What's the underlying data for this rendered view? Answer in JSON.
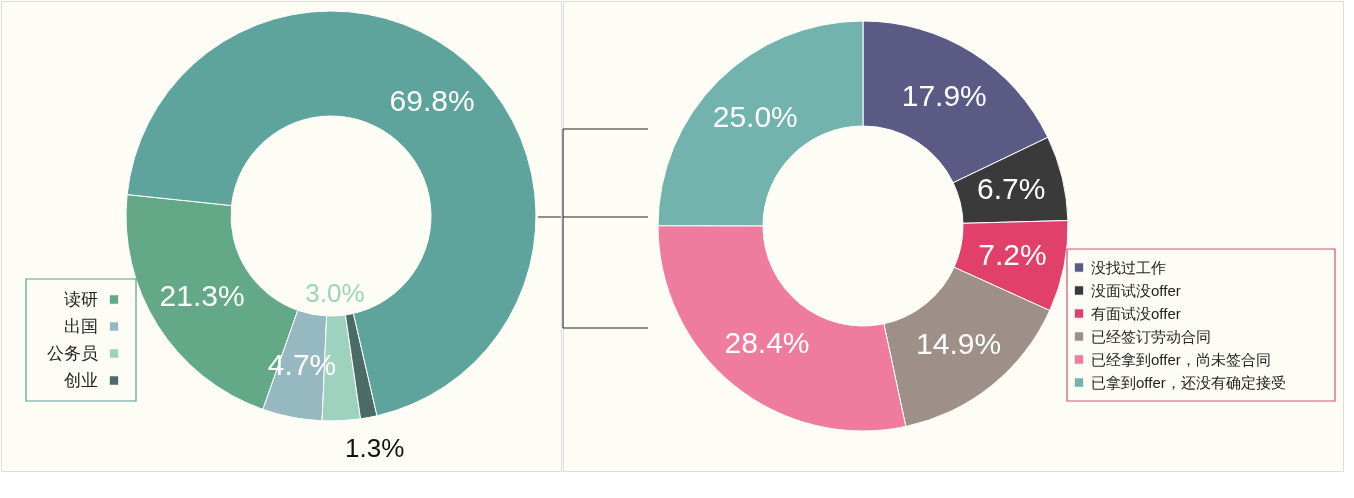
{
  "chart_data": [
    {
      "type": "donut",
      "categories": [
        "读研",
        "出国",
        "公务员",
        "创业",
        null
      ],
      "values": [
        21.3,
        4.7,
        3.0,
        1.3,
        69.8
      ],
      "colors": [
        "#63a887",
        "#96b9c1",
        "#9fd1bf",
        "#4b6b66",
        "#5fa39d"
      ],
      "value_labels": [
        "21.3%",
        "4.7%",
        "3.0%",
        "1.3%",
        "69.8%"
      ],
      "legend": "bottom left"
    },
    {
      "type": "donut",
      "categories": [
        "没找过工作",
        "没面试没offer",
        "有面试没offer",
        "已经签订劳动合同",
        "已经拿到offer，尚未签合同",
        "已拿到offer，还没有确定接受"
      ],
      "values": [
        17.9,
        6.7,
        7.2,
        14.9,
        28.4,
        25.0
      ],
      "colors": [
        "#5a5a85",
        "#3a3a3a",
        "#e0406a",
        "#9e9088",
        "#ef7b9e",
        "#72b3ad"
      ],
      "value_labels": [
        "17.9%",
        "6.7%",
        "7.2%",
        "14.9%",
        "28.4%",
        "25.0%"
      ],
      "legend": "bottom right"
    }
  ]
}
